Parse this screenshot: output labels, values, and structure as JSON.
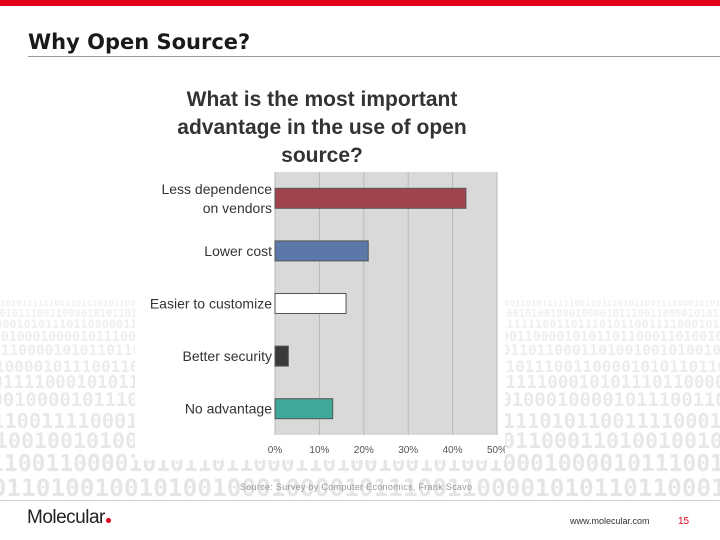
{
  "slide": {
    "title": "Why Open Source?",
    "source": "Source: Survey by Computer Economics, Frank Scavo",
    "logo": "Molecular",
    "website": "www.molecular.com",
    "page_number": "15"
  },
  "colors": {
    "brand": "#e3001b",
    "series": [
      "#a0444f",
      "#5b78a8",
      "#ffffff",
      "#3a3a3a",
      "#40a898"
    ]
  },
  "chart_data": {
    "type": "bar",
    "orientation": "horizontal",
    "title": "What is the most important advantage in the use of open source?",
    "title_lines": [
      "What is the most important",
      "advantage in the use of open",
      "source?"
    ],
    "categories": [
      "Less dependence on vendors",
      "Lower cost",
      "Easier to customize",
      "Better security",
      "No advantage"
    ],
    "category_lines": [
      [
        "Less dependence",
        "on vendors"
      ],
      [
        "Lower cost"
      ],
      [
        "Easier to customize"
      ],
      [
        "Better security"
      ],
      [
        "No advantage"
      ]
    ],
    "values": [
      43,
      21,
      16,
      3,
      13
    ],
    "xlim": [
      0,
      50
    ],
    "xticks": [
      "0%",
      "10%",
      "20%",
      "30%",
      "40%",
      "50%"
    ],
    "grid": true
  }
}
